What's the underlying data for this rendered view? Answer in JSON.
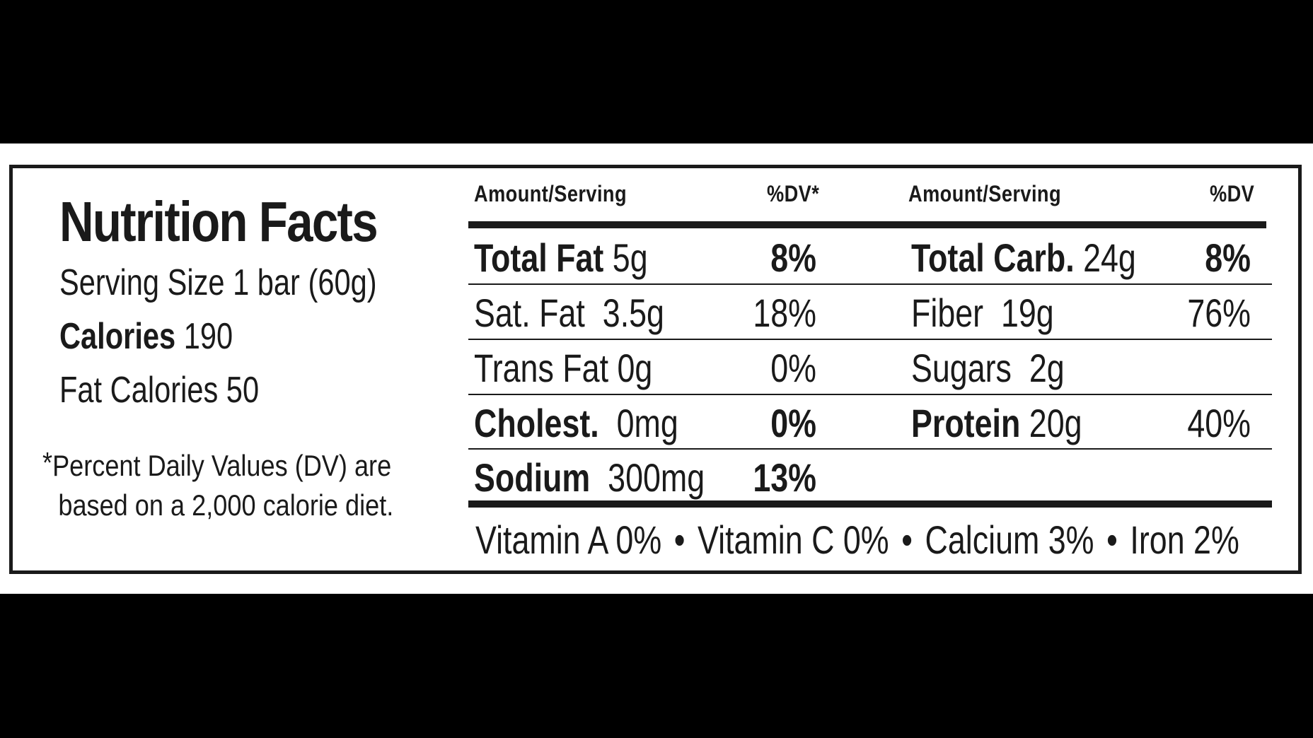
{
  "title": "Nutrition Facts",
  "serving_size": "Serving Size 1 bar (60g)",
  "calories": {
    "label": "Calories",
    "value": "190"
  },
  "fat_calories": "Fat Calories 50",
  "footnote": {
    "star": "*",
    "line1": "Percent Daily Values (DV) are",
    "line2": "based on a 2,000 calorie diet."
  },
  "headers": {
    "left_amount": "Amount/Serving",
    "left_dv": "%DV*",
    "right_amount": "Amount/Serving",
    "right_dv": "%DV"
  },
  "left_rows": [
    {
      "name": "Total Fat",
      "amount": "5g",
      "dv": "8%"
    },
    {
      "name": "Sat. Fat",
      "amount": "3.5g",
      "dv": "18%"
    },
    {
      "name": "Trans Fat",
      "amount": "0g",
      "dv": "0%"
    },
    {
      "name": "Cholest.",
      "amount": "0mg",
      "dv": "0%"
    },
    {
      "name": "Sodium",
      "amount": "300mg",
      "dv": "13%"
    }
  ],
  "right_rows": [
    {
      "name": "Total Carb.",
      "amount": "24g",
      "dv": "8%"
    },
    {
      "name": "Fiber",
      "amount": "19g",
      "dv": "76%"
    },
    {
      "name": "Sugars",
      "amount": "2g",
      "dv": ""
    },
    {
      "name": "Protein",
      "amount": "20g",
      "dv": "40%"
    }
  ],
  "vitamins": [
    "Vitamin A 0%",
    "Vitamin C 0%",
    "Calcium 3%",
    "Iron 2%"
  ],
  "separator": "•",
  "colors": {
    "background": "#000000",
    "label": "#ffffff",
    "ink": "#1a1a1a"
  }
}
